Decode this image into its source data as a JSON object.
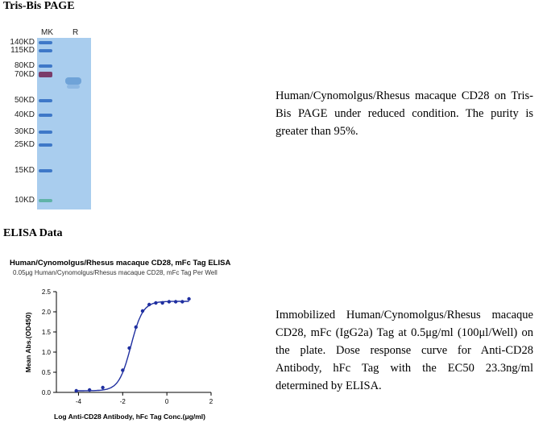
{
  "gel_section": {
    "title": "Tris-Bis PAGE",
    "lanes": [
      "MK",
      "R"
    ],
    "markers": [
      "140KD",
      "115KD",
      "80KD",
      "70KD",
      "50KD",
      "40KD",
      "30KD",
      "25KD",
      "15KD",
      "10KD"
    ],
    "description": "Human/Cynomolgus/Rhesus macaque CD28 on Tris-Bis PAGE under reduced condition. The purity is greater than 95%."
  },
  "elisa_section": {
    "title": "ELISA Data",
    "description": "Immobilized Human/Cynomolgus/Rhesus macaque CD28, mFc (IgG2a) Tag at 0.5μg/ml (100μl/Well) on the plate. Dose response curve for Anti-CD28 Antibody, hFc Tag with the EC50 23.3ng/ml determined by ELISA."
  },
  "chart_data": {
    "type": "scatter",
    "title": "Human/Cynomolgus/Rhesus macaque CD28, mFc Tag ELISA",
    "subtitle": "0.05μg Human/Cynomolgus/Rhesus macaque CD28, mFc Tag Per Well",
    "xlabel": "Log Anti-CD28 Antibody, hFc Tag Conc.(μg/ml)",
    "ylabel": "Mean Abs.(OD450)",
    "xlim": [
      -5,
      2
    ],
    "ylim": [
      0,
      2.5
    ],
    "xticks": [
      "-4",
      "-2",
      "0",
      "2"
    ],
    "yticks": [
      "0.0",
      "0.5",
      "1.0",
      "1.5",
      "2.0",
      "2.5"
    ],
    "x": [
      -4.1,
      -3.5,
      -2.9,
      -2.0,
      -1.7,
      -1.4,
      -1.1,
      -0.8,
      -0.5,
      -0.2,
      0.1,
      0.4,
      0.7,
      1.0
    ],
    "y": [
      0.04,
      0.06,
      0.12,
      0.55,
      1.1,
      1.62,
      2.02,
      2.18,
      2.22,
      2.22,
      2.25,
      2.25,
      2.25,
      2.32
    ],
    "color": "#1f2fa0",
    "fit": "sigmoidal"
  }
}
